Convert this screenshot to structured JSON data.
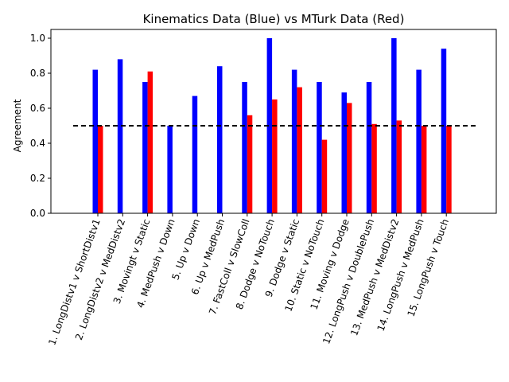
{
  "chart_data": {
    "type": "bar",
    "title": "Kinematics Data (Blue) vs MTurk Data (Red)",
    "xlabel": "",
    "ylabel": "Agreement",
    "ylim": [
      0,
      1.05
    ],
    "yticks": [
      "0.0",
      "0.2",
      "0.4",
      "0.6",
      "0.8",
      "1.0"
    ],
    "grid": false,
    "reference_line": {
      "y": 0.5,
      "style": "dashed",
      "color": "#000000"
    },
    "categories": [
      "1. LongDistv1 v ShortDistv1",
      "2. LongDistv2 v MedDistv2",
      "3. Movingt v Static",
      "4. MedPush v Down",
      "5. Up v Down",
      "6. Up v MedPush",
      "7. FastColl v SlowColl",
      "8. Dodge v NoTouch",
      "9. Dodge v Static",
      "10. Static v NoTouch",
      "11. Moving v Dodge",
      "12. LongPush v DoublePush",
      "13. MedPush v MedDistv2",
      "14. LongPush v MedPush",
      "15. LongPush v Touch"
    ],
    "series": [
      {
        "color": "#0000ff",
        "values": [
          0.82,
          0.88,
          0.75,
          0.5,
          0.67,
          0.84,
          0.75,
          1.0,
          0.82,
          0.75,
          0.69,
          0.75,
          1.0,
          0.82,
          0.94
        ]
      },
      {
        "color": "#ff0000",
        "values": [
          0.5,
          null,
          0.81,
          null,
          null,
          null,
          0.56,
          0.65,
          0.72,
          0.42,
          0.63,
          0.51,
          0.53,
          0.5,
          0.5
        ]
      }
    ]
  }
}
